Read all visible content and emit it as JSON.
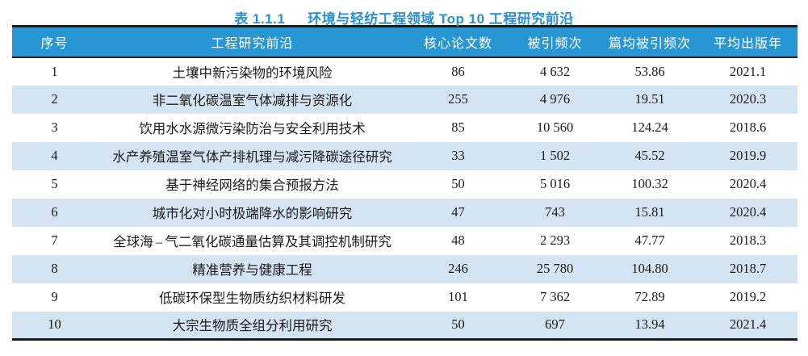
{
  "title": {
    "label": "表 1.1.1",
    "text": "环境与轻纺工程领域 Top 10 工程研究前沿"
  },
  "colors": {
    "title_color": "#2a90d0",
    "header_bg": "#2996d4",
    "stripe_bg": "#d4e4f3",
    "border_color": "#1c1c1c",
    "header_text": "#ffffff",
    "body_text": "#1b1b1b"
  },
  "table": {
    "columns": [
      "序号",
      "工程研究前沿",
      "核心论文数",
      "被引频次",
      "篇均被引频次",
      "平均出版年"
    ],
    "rows": [
      [
        "1",
        "土壤中新污染物的环境风险",
        "86",
        "4 632",
        "53.86",
        "2021.1"
      ],
      [
        "2",
        "非二氧化碳温室气体减排与资源化",
        "255",
        "4 976",
        "19.51",
        "2020.3"
      ],
      [
        "3",
        "饮用水水源微污染防治与安全利用技术",
        "85",
        "10 560",
        "124.24",
        "2018.6"
      ],
      [
        "4",
        "水产养殖温室气体产排机理与减污降碳途径研究",
        "33",
        "1 502",
        "45.52",
        "2019.9"
      ],
      [
        "5",
        "基于神经网络的集合预报方法",
        "50",
        "5 016",
        "100.32",
        "2020.4"
      ],
      [
        "6",
        "城市化对小时极端降水的影响研究",
        "47",
        "743",
        "15.81",
        "2020.4"
      ],
      [
        "7",
        "全球海 – 气二氧化碳通量估算及其调控机制研究",
        "48",
        "2 293",
        "47.77",
        "2018.3"
      ],
      [
        "8",
        "精准营养与健康工程",
        "246",
        "25 780",
        "104.80",
        "2018.7"
      ],
      [
        "9",
        "低碳环保型生物质纺织材料研发",
        "101",
        "7 362",
        "72.89",
        "2019.2"
      ],
      [
        "10",
        "大宗生物质全组分利用研究",
        "50",
        "697",
        "13.94",
        "2021.4"
      ]
    ]
  }
}
